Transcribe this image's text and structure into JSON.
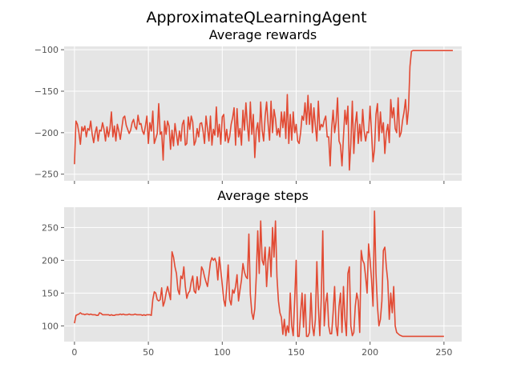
{
  "figure": {
    "title": "ApproximateQLearningAgent",
    "style": {
      "background": "#ffffff",
      "axes_face": "#e5e5e5",
      "grid": "#ffffff",
      "line": "#e24a33",
      "tick_text": "#555555"
    }
  },
  "chart_data": [
    {
      "type": "line",
      "title": "Average rewards",
      "xlabel": "",
      "ylabel": "",
      "grid": true,
      "xlim": [
        -7,
        262
      ],
      "ylim": [
        -258,
        -96
      ],
      "xticks": [
        0,
        50,
        100,
        150,
        200,
        250
      ],
      "xtick_labels_visible": false,
      "yticks": [
        -250,
        -200,
        -150,
        -100
      ],
      "ytick_labels": [
        "−250",
        "−200",
        "−150",
        "−100"
      ],
      "series": [
        {
          "x_start": 0,
          "x_step": 1,
          "values": [
            -238,
            -186,
            -190,
            -200,
            -214,
            -193,
            -198,
            -192,
            -205,
            -195,
            -197,
            -186,
            -202,
            -212,
            -200,
            -193,
            -210,
            -197,
            -198,
            -188,
            -196,
            -210,
            -193,
            -205,
            -195,
            -175,
            -205,
            -192,
            -210,
            -190,
            -198,
            -208,
            -195,
            -182,
            -180,
            -191,
            -196,
            -201,
            -197,
            -188,
            -184,
            -193,
            -196,
            -179,
            -190,
            -189,
            -198,
            -202,
            -192,
            -180,
            -213,
            -188,
            -198,
            -174,
            -213,
            -207,
            -201,
            -165,
            -202,
            -199,
            -233,
            -186,
            -202,
            -186,
            -192,
            -220,
            -197,
            -216,
            -189,
            -202,
            -215,
            -198,
            -210,
            -190,
            -185,
            -215,
            -213,
            -181,
            -196,
            -180,
            -187,
            -215,
            -210,
            -195,
            -205,
            -189,
            -188,
            -198,
            -213,
            -180,
            -195,
            -210,
            -180,
            -215,
            -196,
            -203,
            -169,
            -205,
            -190,
            -214,
            -181,
            -178,
            -210,
            -196,
            -212,
            -205,
            -190,
            -182,
            -170,
            -215,
            -171,
            -205,
            -195,
            -215,
            -173,
            -197,
            -164,
            -191,
            -210,
            -163,
            -202,
            -178,
            -230,
            -197,
            -188,
            -211,
            -163,
            -197,
            -210,
            -180,
            -163,
            -189,
            -209,
            -162,
            -200,
            -172,
            -183,
            -203,
            -195,
            -205,
            -175,
            -194,
            -175,
            -207,
            -154,
            -213,
            -178,
            -209,
            -175,
            -200,
            -190,
            -210,
            -213,
            -200,
            -180,
            -185,
            -164,
            -190,
            -155,
            -190,
            -165,
            -200,
            -170,
            -192,
            -210,
            -162,
            -197,
            -190,
            -193,
            -185,
            -180,
            -205,
            -205,
            -240,
            -195,
            -173,
            -200,
            -187,
            -158,
            -210,
            -215,
            -240,
            -205,
            -173,
            -190,
            -168,
            -245,
            -213,
            -162,
            -225,
            -190,
            -175,
            -213,
            -190,
            -210,
            -172,
            -198,
            -210,
            -199,
            -200,
            -168,
            -200,
            -235,
            -220,
            -178,
            -165,
            -210,
            -175,
            -200,
            -188,
            -225,
            -200,
            -190,
            -212,
            -160,
            -182,
            -170,
            -195,
            -200,
            -158,
            -205,
            -200,
            -185,
            -175,
            -160,
            -190,
            -172,
            -120,
            -102,
            -101,
            -101,
            -101,
            -101,
            -101,
            -101,
            -101,
            -101,
            -101,
            -101,
            -101,
            -101,
            -101,
            -101,
            -101,
            -101,
            -101,
            -101,
            -101,
            -101,
            -101,
            -101,
            -101,
            -101,
            -101,
            -101,
            -101,
            -101
          ]
        }
      ]
    },
    {
      "type": "line",
      "title": "Average steps",
      "xlabel": "",
      "ylabel": "",
      "grid": true,
      "xlim": [
        -7,
        262
      ],
      "ylim": [
        76,
        281
      ],
      "xticks": [
        0,
        50,
        100,
        150,
        200,
        250
      ],
      "xtick_labels": [
        "0",
        "50",
        "100",
        "150",
        "200",
        "250"
      ],
      "yticks": [
        100,
        150,
        200,
        250
      ],
      "ytick_labels": [
        "100",
        "150",
        "200",
        "250"
      ],
      "series": [
        {
          "x_start": 0,
          "x_step": 1,
          "values": [
            104,
            116,
            117,
            118,
            120,
            118,
            118,
            117,
            118,
            118,
            117,
            118,
            117,
            117,
            117,
            116,
            116,
            120,
            119,
            117,
            117,
            117,
            117,
            117,
            116,
            117,
            116,
            116,
            117,
            117,
            117,
            118,
            117,
            118,
            117,
            117,
            117,
            118,
            117,
            117,
            117,
            118,
            117,
            117,
            117,
            117,
            116,
            117,
            116,
            117,
            117,
            117,
            116,
            140,
            152,
            150,
            140,
            138,
            140,
            158,
            130,
            137,
            150,
            160,
            150,
            140,
            213,
            205,
            190,
            180,
            155,
            148,
            176,
            172,
            190,
            160,
            142,
            150,
            153,
            167,
            176,
            153,
            150,
            175,
            155,
            162,
            190,
            185,
            175,
            167,
            160,
            178,
            197,
            204,
            200,
            203,
            196,
            170,
            205,
            185,
            163,
            140,
            130,
            158,
            193,
            140,
            132,
            155,
            150,
            160,
            178,
            138,
            155,
            170,
            195,
            182,
            175,
            172,
            240,
            148,
            120,
            110,
            126,
            175,
            245,
            180,
            260,
            200,
            193,
            220,
            160,
            200,
            220,
            175,
            250,
            205,
            260,
            175,
            138,
            120,
            113,
            87,
            110,
            85,
            100,
            90,
            150,
            100,
            85,
            140,
            200,
            84,
            84,
            120,
            150,
            98,
            148,
            84,
            84,
            90,
            150,
            100,
            85,
            110,
            198,
            130,
            85,
            142,
            245,
            100,
            135,
            150,
            100,
            88,
            88,
            120,
            160,
            100,
            85,
            130,
            150,
            90,
            160,
            110,
            85,
            180,
            190,
            100,
            85,
            90,
            130,
            150,
            138,
            90,
            215,
            200,
            195,
            175,
            150,
            225,
            200,
            170,
            130,
            275,
            180,
            130,
            100,
            110,
            138,
            215,
            220,
            190,
            168,
            110,
            150,
            120,
            160,
            100,
            90,
            88,
            86,
            85,
            84,
            84,
            84,
            84,
            84,
            84,
            84,
            84,
            84,
            84,
            84,
            84,
            84,
            84,
            84,
            84,
            84,
            84,
            84,
            84,
            84,
            84,
            84,
            84,
            84,
            84,
            84,
            84,
            84
          ]
        }
      ]
    }
  ]
}
